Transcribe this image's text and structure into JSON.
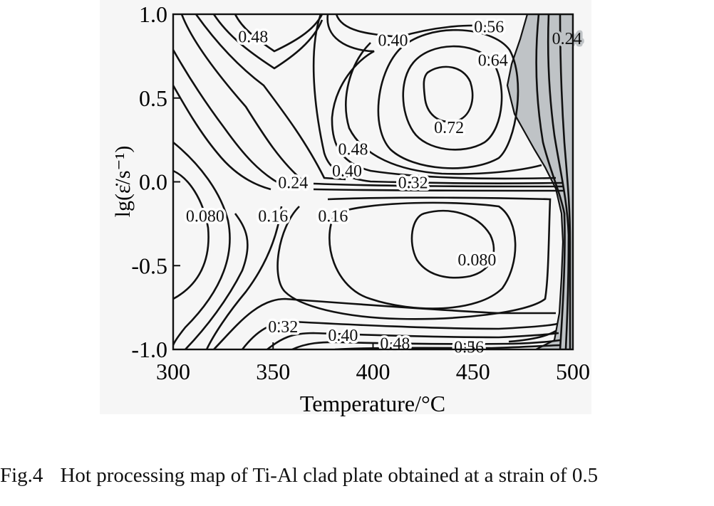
{
  "chart_data": {
    "type": "contour",
    "xlabel": "Temperature/°C",
    "ylabel": "lg(ε̇/s⁻¹)",
    "xlim": [
      300,
      500
    ],
    "ylim": [
      -1.0,
      1.0
    ],
    "x_ticks": [
      300,
      350,
      400,
      450,
      500
    ],
    "x_tick_labels": [
      "300",
      "350",
      "400",
      "450",
      "500"
    ],
    "y_ticks": [
      -1.0,
      -0.5,
      0.0,
      0.5,
      1.0
    ],
    "y_tick_labels": [
      "-1.0",
      "-0.5",
      "0.0",
      "0.5",
      "1.0"
    ],
    "instability_region_color": "#bfc3c6",
    "contour_labels": [
      {
        "text": "0.48",
        "x": 340,
        "y": 0.87
      },
      {
        "text": "0.40",
        "x": 410,
        "y": 0.85
      },
      {
        "text": "0.56",
        "x": 458,
        "y": 0.93
      },
      {
        "text": "0.24",
        "x": 497,
        "y": 0.86
      },
      {
        "text": "0.64",
        "x": 460,
        "y": 0.73
      },
      {
        "text": "0.72",
        "x": 438,
        "y": 0.33
      },
      {
        "text": "0.48",
        "x": 390,
        "y": 0.2
      },
      {
        "text": "0.40",
        "x": 387,
        "y": 0.07
      },
      {
        "text": "0.24",
        "x": 360,
        "y": 0.0
      },
      {
        "text": "0.32",
        "x": 420,
        "y": 0.0
      },
      {
        "text": "0.080",
        "x": 316,
        "y": -0.2
      },
      {
        "text": "0.16",
        "x": 350,
        "y": -0.2
      },
      {
        "text": "0.16",
        "x": 380,
        "y": -0.2
      },
      {
        "text": "0.080",
        "x": 452,
        "y": -0.46
      },
      {
        "text": "0.32",
        "x": 355,
        "y": -0.86
      },
      {
        "text": "0.40",
        "x": 385,
        "y": -0.91
      },
      {
        "text": "0.48",
        "x": 411,
        "y": -0.96
      },
      {
        "text": "0.56",
        "x": 448,
        "y": -0.98
      }
    ]
  },
  "caption": {
    "number": "Fig.4",
    "text": "Hot processing map of Ti-Al clad plate obtained at a strain of 0.5"
  }
}
